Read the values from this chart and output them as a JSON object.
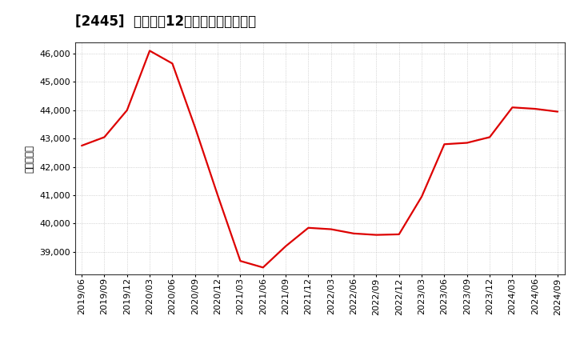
{
  "title": "[2445]  売上高の12か月移動合計の推移",
  "ylabel": "（百万円）",
  "line_color": "#dd0000",
  "background_color": "#ffffff",
  "plot_bg_color": "#ffffff",
  "grid_color": "#999999",
  "dates": [
    "2019/06",
    "2019/09",
    "2019/12",
    "2020/03",
    "2020/06",
    "2020/09",
    "2020/12",
    "2021/03",
    "2021/06",
    "2021/09",
    "2021/12",
    "2022/03",
    "2022/06",
    "2022/09",
    "2022/12",
    "2023/03",
    "2023/06",
    "2023/09",
    "2023/12",
    "2024/03",
    "2024/06",
    "2024/09"
  ],
  "values": [
    42750,
    43050,
    44000,
    46100,
    45650,
    43400,
    41000,
    38680,
    38450,
    39200,
    39850,
    39800,
    39650,
    39600,
    39620,
    40950,
    42800,
    42850,
    43050,
    44100,
    44050,
    43950
  ],
  "ylim": [
    38200,
    46400
  ],
  "yticks": [
    39000,
    40000,
    41000,
    42000,
    43000,
    44000,
    45000,
    46000
  ],
  "title_fontsize": 12,
  "label_fontsize": 8.5,
  "tick_fontsize": 8
}
